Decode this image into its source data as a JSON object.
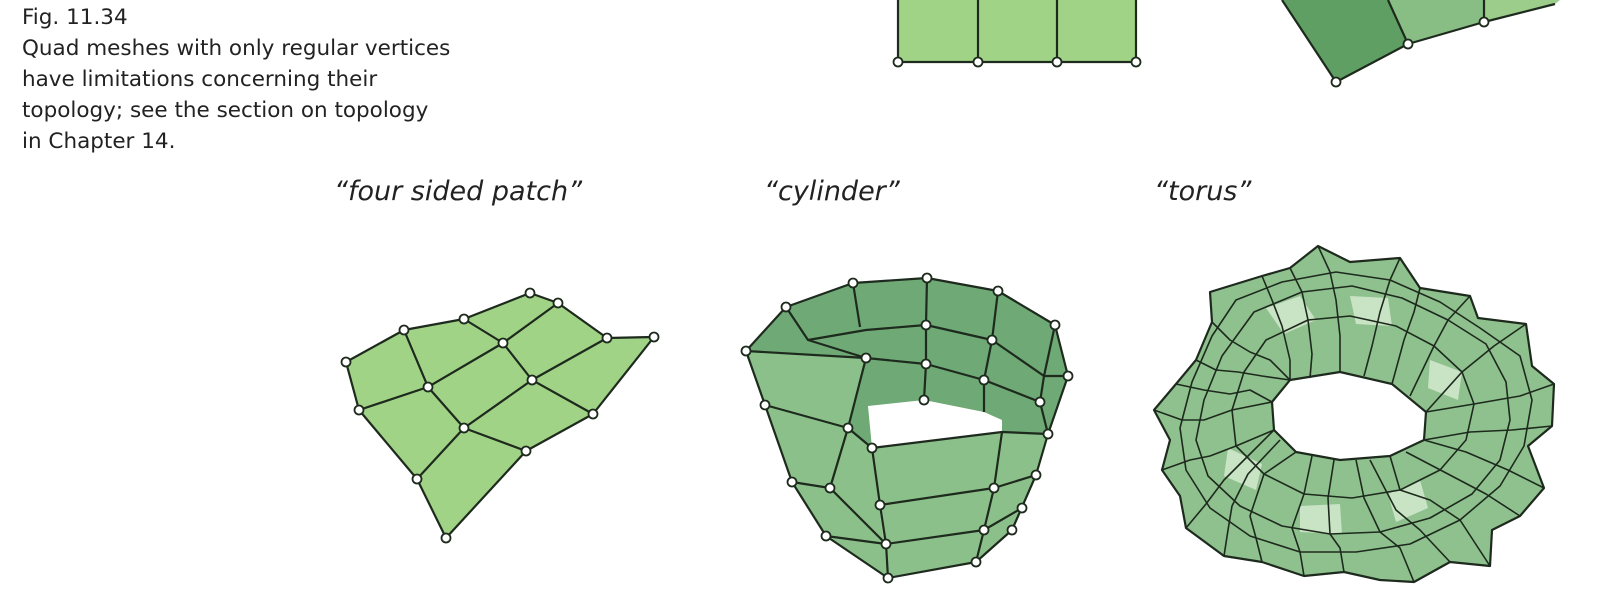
{
  "caption": {
    "fig_number": "Fig. 11.34",
    "lines": [
      "Quad meshes with only regular vertices",
      "have limitations concerning their",
      "topology; see the section on topology",
      "in Chapter 14."
    ]
  },
  "labels": {
    "four_sided_patch": "“four sided patch”",
    "cylinder": "“cylinder”",
    "torus": "“torus”"
  },
  "colors": {
    "patch_fill": "#a1d386",
    "cylinder_outer": "#8cc08a",
    "cylinder_inner": "#6fa975",
    "torus_fill": "#8fc18e",
    "torus_highlight": "#c9e3c5",
    "edge": "#1d2a1d"
  }
}
